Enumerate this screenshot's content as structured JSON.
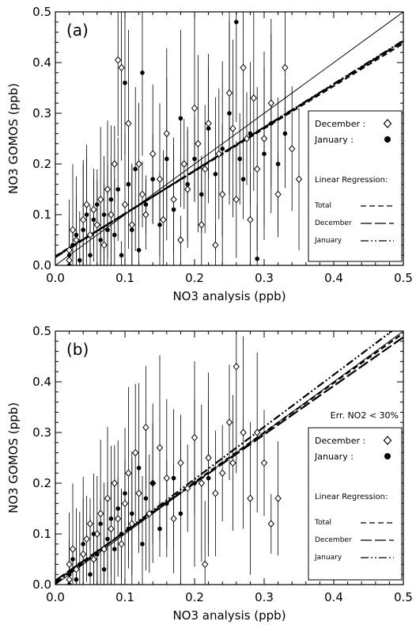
{
  "chart_data": [
    {
      "type": "scatter",
      "panel_label": "(a)",
      "xlabel": "NO3 analysis (ppb)",
      "ylabel": "NO3 GOMOS (ppb)",
      "xlim": [
        0.0,
        0.5
      ],
      "ylim": [
        0.0,
        0.5
      ],
      "x_ticks": [
        "0.0",
        "0.1",
        "0.2",
        "0.3",
        "0.4",
        "0.5"
      ],
      "y_ticks": [
        "0.0",
        "0.1",
        "0.2",
        "0.3",
        "0.4",
        "0.5"
      ],
      "annotation": "",
      "legend": {
        "placement": "right",
        "markers": [
          {
            "label": "December :",
            "marker": "diamond-open"
          },
          {
            "label": "January :",
            "marker": "circle-filled"
          }
        ],
        "regression_title": "Linear Regression:",
        "lines": [
          {
            "label": "Total",
            "style": "dashed"
          },
          {
            "label": "December",
            "style": "long-dashed"
          },
          {
            "label": "January",
            "style": "dash-dot-dot"
          }
        ]
      },
      "one_to_one_line": true,
      "regression": {
        "total": {
          "intercept": 0.018,
          "slope": 0.84
        },
        "december": {
          "intercept": 0.017,
          "slope": 0.85
        },
        "january": {
          "intercept": 0.016,
          "slope": 0.855
        }
      },
      "series": [
        {
          "name": "December",
          "marker": "diamond-open",
          "points": [
            [
              0.02,
              0.01
            ],
            [
              0.02,
              0.03
            ],
            [
              0.025,
              0.07
            ],
            [
              0.03,
              0.05
            ],
            [
              0.04,
              0.09
            ],
            [
              0.045,
              0.12
            ],
            [
              0.05,
              0.06
            ],
            [
              0.055,
              0.11
            ],
            [
              0.06,
              0.08
            ],
            [
              0.065,
              0.13
            ],
            [
              0.07,
              0.04
            ],
            [
              0.075,
              0.15
            ],
            [
              0.08,
              0.1
            ],
            [
              0.085,
              0.2
            ],
            [
              0.09,
              0.405
            ],
            [
              0.095,
              0.39
            ],
            [
              0.1,
              0.12
            ],
            [
              0.105,
              0.28
            ],
            [
              0.11,
              0.08
            ],
            [
              0.12,
              0.2
            ],
            [
              0.125,
              0.14
            ],
            [
              0.13,
              0.1
            ],
            [
              0.14,
              0.22
            ],
            [
              0.15,
              0.17
            ],
            [
              0.155,
              0.09
            ],
            [
              0.16,
              0.26
            ],
            [
              0.17,
              0.13
            ],
            [
              0.18,
              0.05
            ],
            [
              0.185,
              0.2
            ],
            [
              0.19,
              0.15
            ],
            [
              0.2,
              0.31
            ],
            [
              0.205,
              0.24
            ],
            [
              0.21,
              0.08
            ],
            [
              0.215,
              0.19
            ],
            [
              0.22,
              0.28
            ],
            [
              0.23,
              0.04
            ],
            [
              0.235,
              0.22
            ],
            [
              0.24,
              0.14
            ],
            [
              0.25,
              0.34
            ],
            [
              0.255,
              0.27
            ],
            [
              0.26,
              0.13
            ],
            [
              0.27,
              0.39
            ],
            [
              0.275,
              0.25
            ],
            [
              0.28,
              0.09
            ],
            [
              0.285,
              0.33
            ],
            [
              0.29,
              0.19
            ],
            [
              0.3,
              0.25
            ],
            [
              0.31,
              0.32
            ],
            [
              0.32,
              0.14
            ],
            [
              0.33,
              0.39
            ],
            [
              0.34,
              0.23
            ],
            [
              0.35,
              0.17
            ]
          ]
        },
        {
          "name": "January",
          "marker": "circle-filled",
          "points": [
            [
              0.02,
              0.0
            ],
            [
              0.02,
              0.02
            ],
            [
              0.025,
              0.04
            ],
            [
              0.03,
              0.06
            ],
            [
              0.035,
              0.01
            ],
            [
              0.04,
              0.07
            ],
            [
              0.045,
              0.1
            ],
            [
              0.05,
              0.02
            ],
            [
              0.055,
              0.09
            ],
            [
              0.06,
              0.12
            ],
            [
              0.065,
              0.05
            ],
            [
              0.07,
              0.1
            ],
            [
              0.075,
              0.07
            ],
            [
              0.08,
              0.13
            ],
            [
              0.085,
              0.06
            ],
            [
              0.09,
              0.15
            ],
            [
              0.095,
              0.02
            ],
            [
              0.1,
              0.36
            ],
            [
              0.105,
              0.16
            ],
            [
              0.11,
              0.07
            ],
            [
              0.115,
              0.19
            ],
            [
              0.12,
              0.03
            ],
            [
              0.125,
              0.38
            ],
            [
              0.13,
              0.12
            ],
            [
              0.14,
              0.17
            ],
            [
              0.15,
              0.08
            ],
            [
              0.16,
              0.21
            ],
            [
              0.17,
              0.11
            ],
            [
              0.18,
              0.29
            ],
            [
              0.19,
              0.16
            ],
            [
              0.2,
              0.21
            ],
            [
              0.21,
              0.14
            ],
            [
              0.22,
              0.27
            ],
            [
              0.23,
              0.18
            ],
            [
              0.24,
              0.23
            ],
            [
              0.25,
              0.3
            ],
            [
              0.26,
              0.48
            ],
            [
              0.265,
              0.21
            ],
            [
              0.27,
              0.17
            ],
            [
              0.28,
              0.26
            ],
            [
              0.29,
              0.013
            ],
            [
              0.3,
              0.22
            ],
            [
              0.31,
              0.28
            ],
            [
              0.32,
              0.2
            ],
            [
              0.33,
              0.26
            ]
          ]
        }
      ]
    },
    {
      "type": "scatter",
      "panel_label": "(b)",
      "xlabel": "NO3 analysis (ppb)",
      "ylabel": "NO3 GOMOS (ppb)",
      "xlim": [
        0.0,
        0.5
      ],
      "ylim": [
        0.0,
        0.5
      ],
      "x_ticks": [
        "0.0",
        "0.1",
        "0.2",
        "0.3",
        "0.4",
        "0.5"
      ],
      "y_ticks": [
        "0.0",
        "0.1",
        "0.2",
        "0.3",
        "0.4",
        "0.5"
      ],
      "annotation": "Err. NO2  < 30%",
      "legend": {
        "placement": "right",
        "markers": [
          {
            "label": "December :",
            "marker": "diamond-open"
          },
          {
            "label": "January :",
            "marker": "circle-filled"
          }
        ],
        "regression_title": "Linear Regression:",
        "lines": [
          {
            "label": "Total",
            "style": "dashed"
          },
          {
            "label": "December",
            "style": "long-dashed"
          },
          {
            "label": "January",
            "style": "dash-dot-dot"
          }
        ]
      },
      "one_to_one_line": true,
      "regression": {
        "total": {
          "intercept": 0.006,
          "slope": 0.98
        },
        "december": {
          "intercept": 0.008,
          "slope": 0.96
        },
        "january": {
          "intercept": 0.002,
          "slope": 1.03
        }
      },
      "series": [
        {
          "name": "December",
          "marker": "diamond-open",
          "points": [
            [
              0.02,
              0.01
            ],
            [
              0.02,
              0.04
            ],
            [
              0.025,
              0.07
            ],
            [
              0.03,
              0.03
            ],
            [
              0.04,
              0.06
            ],
            [
              0.045,
              0.09
            ],
            [
              0.05,
              0.12
            ],
            [
              0.055,
              0.05
            ],
            [
              0.06,
              0.1
            ],
            [
              0.065,
              0.14
            ],
            [
              0.07,
              0.07
            ],
            [
              0.075,
              0.17
            ],
            [
              0.08,
              0.11
            ],
            [
              0.085,
              0.2
            ],
            [
              0.09,
              0.13
            ],
            [
              0.095,
              0.08
            ],
            [
              0.1,
              0.16
            ],
            [
              0.105,
              0.22
            ],
            [
              0.11,
              0.12
            ],
            [
              0.115,
              0.26
            ],
            [
              0.12,
              0.18
            ],
            [
              0.13,
              0.31
            ],
            [
              0.135,
              0.14
            ],
            [
              0.14,
              0.2
            ],
            [
              0.15,
              0.27
            ],
            [
              0.16,
              0.21
            ],
            [
              0.17,
              0.13
            ],
            [
              0.18,
              0.24
            ],
            [
              0.19,
              0.19
            ],
            [
              0.2,
              0.29
            ],
            [
              0.21,
              0.2
            ],
            [
              0.215,
              0.04
            ],
            [
              0.22,
              0.25
            ],
            [
              0.23,
              0.18
            ],
            [
              0.24,
              0.22
            ],
            [
              0.25,
              0.32
            ],
            [
              0.255,
              0.24
            ],
            [
              0.26,
              0.43
            ],
            [
              0.27,
              0.3
            ],
            [
              0.28,
              0.17
            ],
            [
              0.29,
              0.3
            ],
            [
              0.3,
              0.24
            ],
            [
              0.31,
              0.12
            ],
            [
              0.32,
              0.17
            ]
          ]
        },
        {
          "name": "January",
          "marker": "circle-filled",
          "points": [
            [
              0.02,
              0.0
            ],
            [
              0.02,
              0.02
            ],
            [
              0.025,
              0.05
            ],
            [
              0.03,
              0.01
            ],
            [
              0.035,
              0.04
            ],
            [
              0.04,
              0.08
            ],
            [
              0.05,
              0.02
            ],
            [
              0.055,
              0.1
            ],
            [
              0.06,
              0.06
            ],
            [
              0.065,
              0.12
            ],
            [
              0.07,
              0.03
            ],
            [
              0.075,
              0.09
            ],
            [
              0.08,
              0.13
            ],
            [
              0.085,
              0.07
            ],
            [
              0.09,
              0.15
            ],
            [
              0.095,
              0.1
            ],
            [
              0.1,
              0.18
            ],
            [
              0.105,
              0.11
            ],
            [
              0.11,
              0.14
            ],
            [
              0.12,
              0.23
            ],
            [
              0.125,
              0.08
            ],
            [
              0.13,
              0.17
            ],
            [
              0.14,
              0.2
            ],
            [
              0.15,
              0.11
            ],
            [
              0.16,
              0.16
            ],
            [
              0.17,
              0.21
            ],
            [
              0.18,
              0.14
            ],
            [
              0.2,
              0.2
            ],
            [
              0.22,
              0.21
            ]
          ]
        }
      ]
    }
  ]
}
